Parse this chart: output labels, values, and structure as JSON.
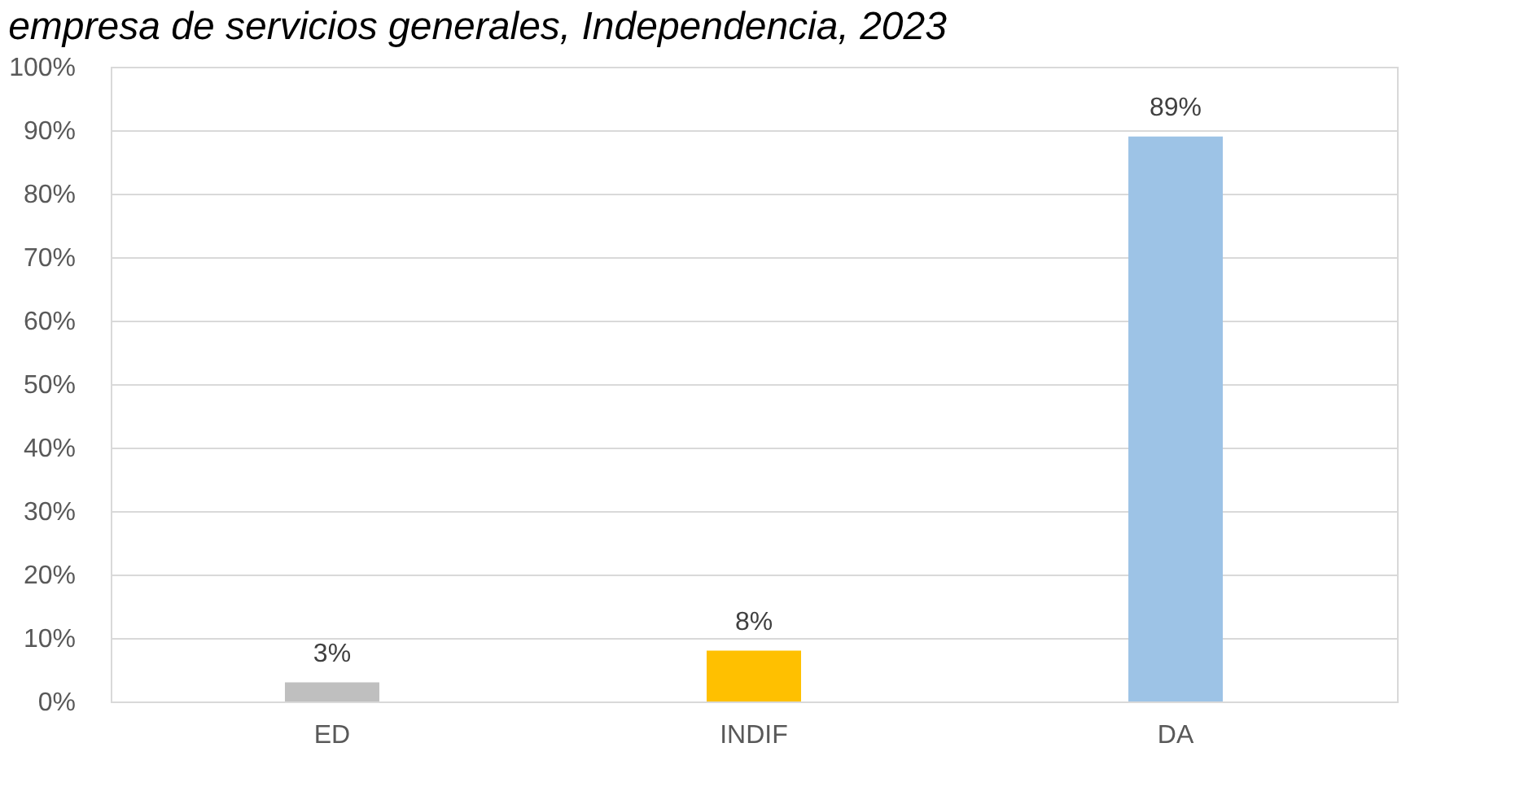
{
  "chart_data": {
    "type": "bar",
    "title": "empresa de servicios generales, Independencia, 2023",
    "categories": [
      "ED",
      "INDIF",
      "DA"
    ],
    "values": [
      3,
      8,
      89
    ],
    "colors": [
      "#bfbfbf",
      "#ffc000",
      "#9dc3e6"
    ],
    "value_labels": [
      "3%",
      "8%",
      "89%"
    ],
    "ylim": [
      0,
      100
    ],
    "yticks": [
      {
        "value": 0,
        "label": "0%"
      },
      {
        "value": 10,
        "label": "10%"
      },
      {
        "value": 20,
        "label": "20%"
      },
      {
        "value": 30,
        "label": "30%"
      },
      {
        "value": 40,
        "label": "40%"
      },
      {
        "value": 50,
        "label": "50%"
      },
      {
        "value": 60,
        "label": "60%"
      },
      {
        "value": 70,
        "label": "70%"
      },
      {
        "value": 80,
        "label": "80%"
      },
      {
        "value": 90,
        "label": "90%"
      },
      {
        "value": 100,
        "label": "100%"
      }
    ],
    "grid": "y"
  }
}
